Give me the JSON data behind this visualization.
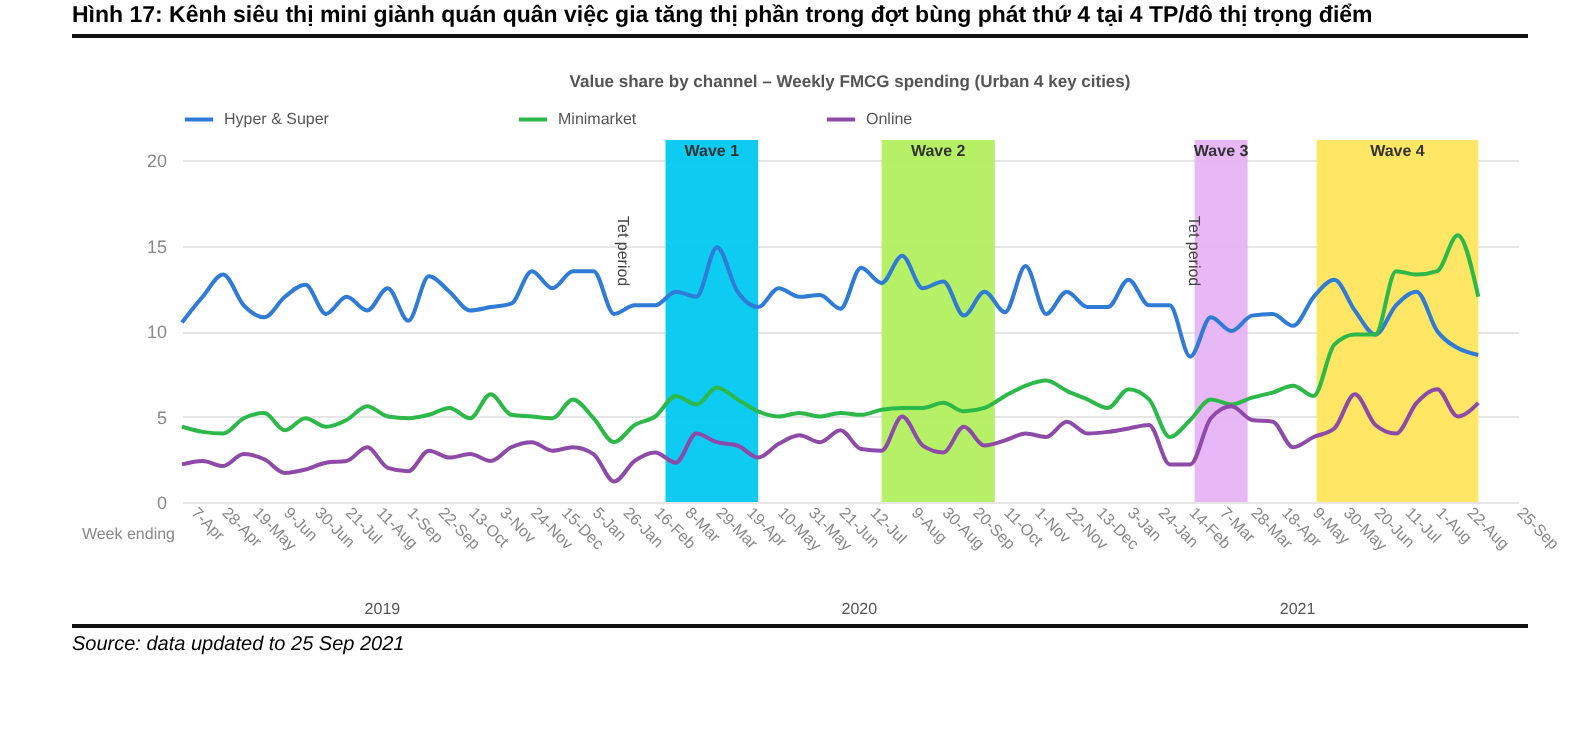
{
  "chart_data": {
    "type": "line",
    "title": "Hình 17: Kênh siêu thị mini giành quán quân việc gia tăng thị phần trong đợt bùng phát thứ 4 tại 4 TP/đô thị trọng điểm",
    "subtitle": "Value share by channel –  Weekly FMCG spending (Urban 4 key cities)",
    "xlabel": "Week ending",
    "x": [
      "2019-03-31",
      "2019-04-14",
      "2019-04-28",
      "2019-05-12",
      "2019-05-26",
      "2019-06-09",
      "2019-06-23",
      "2019-07-07",
      "2019-07-21",
      "2019-08-04",
      "2019-08-18",
      "2019-09-01",
      "2019-09-15",
      "2019-09-29",
      "2019-10-13",
      "2019-10-27",
      "2019-11-10",
      "2019-11-24",
      "2019-12-08",
      "2019-12-22",
      "2020-01-05",
      "2020-01-19",
      "2020-02-02",
      "2020-02-16",
      "2020-03-01",
      "2020-03-15",
      "2020-03-29",
      "2020-04-12",
      "2020-04-26",
      "2020-05-10",
      "2020-05-24",
      "2020-06-07",
      "2020-06-21",
      "2020-07-05",
      "2020-07-19",
      "2020-08-02",
      "2020-08-16",
      "2020-08-30",
      "2020-09-13",
      "2020-09-27",
      "2020-10-11",
      "2020-10-25",
      "2020-11-08",
      "2020-11-22",
      "2020-12-06",
      "2020-12-20",
      "2021-01-03",
      "2021-01-17",
      "2021-01-31",
      "2021-02-14",
      "2021-02-28",
      "2021-03-14",
      "2021-03-28",
      "2021-04-11",
      "2021-04-25",
      "2021-05-09",
      "2021-05-23",
      "2021-06-06",
      "2021-06-20",
      "2021-07-04",
      "2021-07-18",
      "2021-08-01",
      "2021-08-15",
      "2021-08-29"
    ],
    "series": [
      {
        "name": "Hyper & Super",
        "color": "#2f7bd6",
        "values": [
          10.5,
          12.0,
          13.3,
          11.5,
          10.8,
          12.0,
          12.7,
          11.0,
          12.0,
          11.2,
          12.5,
          10.6,
          13.2,
          12.3,
          11.2,
          11.4,
          11.6,
          13.5,
          12.5,
          13.5,
          13.5,
          11.0,
          11.5,
          11.5,
          12.3,
          12.0,
          14.9,
          12.3,
          11.4,
          12.5,
          12.0,
          12.1,
          11.3,
          13.7,
          12.8,
          14.4,
          12.5,
          12.9,
          10.9,
          12.3,
          11.1,
          13.8,
          11.0,
          12.3,
          11.4,
          11.4,
          13.0,
          11.5,
          11.5,
          8.5,
          10.8,
          10.0,
          10.9,
          11.0,
          10.3,
          12.0,
          13.0,
          11.2,
          9.8,
          11.5,
          12.3,
          10.0,
          9.0,
          8.6
        ]
      },
      {
        "name": "Minimarket",
        "color": "#2db84a",
        "values": [
          4.4,
          4.1,
          4.0,
          4.9,
          5.2,
          4.2,
          4.9,
          4.4,
          4.8,
          5.6,
          5.0,
          4.9,
          5.1,
          5.5,
          4.9,
          6.3,
          5.1,
          5.0,
          4.9,
          6.0,
          4.9,
          3.5,
          4.5,
          5.0,
          6.2,
          5.7,
          6.7,
          6.0,
          5.3,
          5.0,
          5.2,
          5.0,
          5.2,
          5.1,
          5.4,
          5.5,
          5.5,
          5.8,
          5.3,
          5.5,
          6.2,
          6.8,
          7.1,
          6.5,
          6.0,
          5.5,
          6.6,
          6.0,
          3.8,
          4.8,
          6.0,
          5.7,
          6.1,
          6.4,
          6.8,
          6.2,
          9.2,
          9.8,
          9.8,
          13.5,
          13.3,
          13.5,
          15.6,
          12.0
        ]
      },
      {
        "name": "Online",
        "color": "#8e4aa8",
        "values": [
          2.2,
          2.4,
          2.1,
          2.8,
          2.5,
          1.7,
          1.9,
          2.3,
          2.4,
          3.2,
          2.0,
          1.8,
          3.0,
          2.6,
          2.8,
          2.4,
          3.2,
          3.5,
          3.0,
          3.2,
          2.8,
          1.2,
          2.4,
          2.9,
          2.3,
          4.0,
          3.5,
          3.3,
          2.6,
          3.4,
          3.9,
          3.5,
          4.2,
          3.1,
          3.0,
          5.0,
          3.3,
          2.9,
          4.4,
          3.3,
          3.6,
          4.0,
          3.8,
          4.7,
          4.0,
          4.1,
          4.3,
          4.5,
          2.2,
          2.2,
          4.9,
          5.6,
          4.8,
          4.7,
          3.2,
          3.8,
          4.3,
          6.3,
          4.5,
          4.0,
          5.8,
          6.6,
          5.0,
          5.8
        ]
      }
    ],
    "xlim": [
      "2019-03-31",
      "2021-09-25"
    ],
    "xticks": [
      {
        "value": "2019-04-07",
        "label": "7-Apr"
      },
      {
        "value": "2019-04-28",
        "label": "28-Apr"
      },
      {
        "value": "2019-05-19",
        "label": "19-May"
      },
      {
        "value": "2019-06-09",
        "label": "9-Jun"
      },
      {
        "value": "2019-06-30",
        "label": "30-Jun"
      },
      {
        "value": "2019-07-21",
        "label": "21-Jul"
      },
      {
        "value": "2019-08-11",
        "label": "11-Aug"
      },
      {
        "value": "2019-09-01",
        "label": "1-Sep"
      },
      {
        "value": "2019-09-22",
        "label": "22-Sep"
      },
      {
        "value": "2019-10-13",
        "label": "13-Oct"
      },
      {
        "value": "2019-11-03",
        "label": "3-Nov"
      },
      {
        "value": "2019-11-24",
        "label": "24-Nov"
      },
      {
        "value": "2019-12-15",
        "label": "15-Dec"
      },
      {
        "value": "2020-01-05",
        "label": "5-Jan"
      },
      {
        "value": "2020-01-26",
        "label": "26-Jan"
      },
      {
        "value": "2020-02-16",
        "label": "16-Feb"
      },
      {
        "value": "2020-03-08",
        "label": "8-Mar"
      },
      {
        "value": "2020-03-29",
        "label": "29-Mar"
      },
      {
        "value": "2020-04-19",
        "label": "19-Apr"
      },
      {
        "value": "2020-05-10",
        "label": "10-May"
      },
      {
        "value": "2020-05-31",
        "label": "31-May"
      },
      {
        "value": "2020-06-21",
        "label": "21-Jun"
      },
      {
        "value": "2020-07-12",
        "label": "12-Jul"
      },
      {
        "value": "2020-08-09",
        "label": "9-Aug"
      },
      {
        "value": "2020-08-30",
        "label": "30-Aug"
      },
      {
        "value": "2020-09-20",
        "label": "20-Sep"
      },
      {
        "value": "2020-10-11",
        "label": "11-Oct"
      },
      {
        "value": "2020-11-01",
        "label": "1-Nov"
      },
      {
        "value": "2020-11-22",
        "label": "22-Nov"
      },
      {
        "value": "2020-12-13",
        "label": "13-Dec"
      },
      {
        "value": "2021-01-03",
        "label": "3-Jan"
      },
      {
        "value": "2021-01-24",
        "label": "24-Jan"
      },
      {
        "value": "2021-02-14",
        "label": "14-Feb"
      },
      {
        "value": "2021-03-07",
        "label": "7-Mar"
      },
      {
        "value": "2021-03-28",
        "label": "28-Mar"
      },
      {
        "value": "2021-04-18",
        "label": "18-Apr"
      },
      {
        "value": "2021-05-09",
        "label": "9-May"
      },
      {
        "value": "2021-05-30",
        "label": "30-May"
      },
      {
        "value": "2021-06-20",
        "label": "20-Jun"
      },
      {
        "value": "2021-07-11",
        "label": "11-Jul"
      },
      {
        "value": "2021-08-01",
        "label": "1-Aug"
      },
      {
        "value": "2021-08-22",
        "label": "22-Aug"
      },
      {
        "value": "2021-09-25",
        "label": "25-Sep"
      }
    ],
    "ylim": [
      0,
      20
    ],
    "yticks": [
      0,
      5,
      10,
      15,
      20
    ],
    "grid": "y",
    "legend": "top",
    "line_style": "solid",
    "bands": [
      {
        "axis": "x",
        "from": "2020-02-23",
        "to": "2020-04-26",
        "label": "Wave 1",
        "color": "#00c8f0"
      },
      {
        "axis": "x",
        "from": "2020-07-19",
        "to": "2020-10-04",
        "label": "Wave 2",
        "color": "#b2ef5e"
      },
      {
        "axis": "x",
        "from": "2021-02-17",
        "to": "2021-03-25",
        "label": "Wave 3",
        "color": "#e6b3f5"
      },
      {
        "axis": "x",
        "from": "2021-05-11",
        "to": "2021-08-29",
        "label": "Wave 4",
        "color": "#ffe55c"
      }
    ],
    "annotations": [
      "Tet period",
      "Tet period",
      "2019",
      "2020",
      "2021",
      "Source: data updated to 25 Sep 2021"
    ]
  }
}
